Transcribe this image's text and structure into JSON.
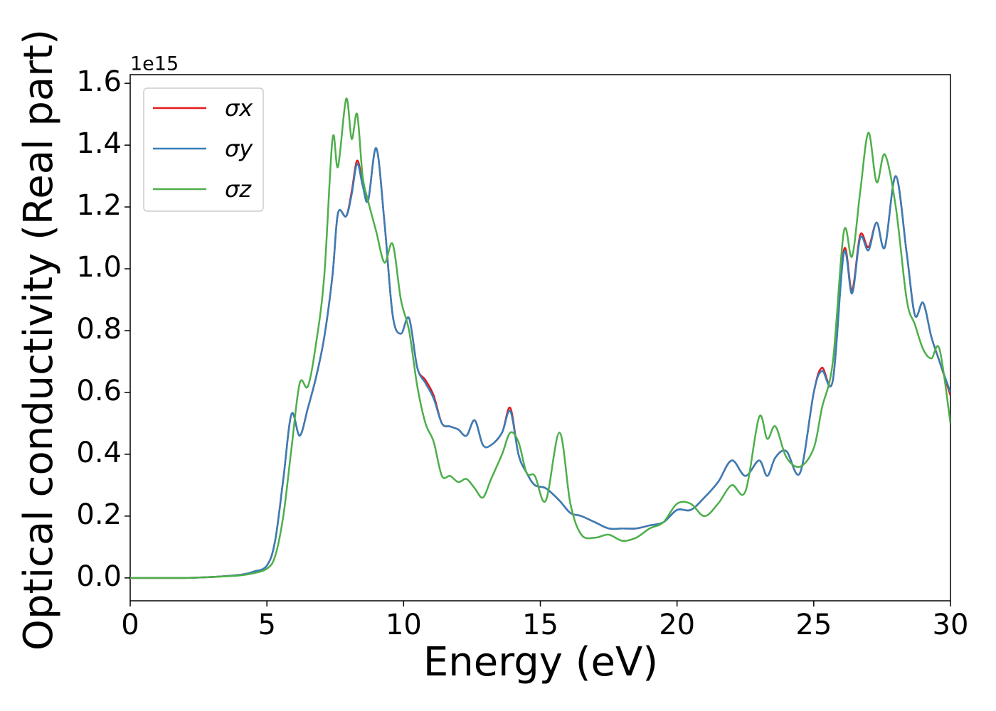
{
  "chart_data": {
    "type": "line",
    "xlabel": "Energy (eV)",
    "ylabel": "Optical conductivity (Real part)",
    "y_offset_label": "1e15",
    "x": [
      0,
      1,
      2,
      3,
      4,
      4.5,
      5,
      5.3,
      5.6,
      5.9,
      6.2,
      6.5,
      6.8,
      7.1,
      7.4,
      7.6,
      7.9,
      8.1,
      8.3,
      8.5,
      8.7,
      9.0,
      9.3,
      9.6,
      9.9,
      10.2,
      10.5,
      10.8,
      11.1,
      11.4,
      11.7,
      12.0,
      12.3,
      12.6,
      12.9,
      13.2,
      13.6,
      13.9,
      14.2,
      14.5,
      14.8,
      15.2,
      15.7,
      16.1,
      16.5,
      17.0,
      17.5,
      18.0,
      18.5,
      19.0,
      19.5,
      20.0,
      20.5,
      21.0,
      21.5,
      22.0,
      22.5,
      23.0,
      23.3,
      23.6,
      24.0,
      24.5,
      25.0,
      25.3,
      25.7,
      26.1,
      26.4,
      26.7,
      27.0,
      27.3,
      27.6,
      28.0,
      28.4,
      28.7,
      29.0,
      29.3,
      29.6,
      30.0
    ],
    "series": [
      {
        "name": "σx",
        "color": "#e41a1c",
        "values": [
          0,
          0,
          0,
          0.003,
          0.01,
          0.02,
          0.04,
          0.12,
          0.32,
          0.53,
          0.46,
          0.55,
          0.65,
          0.78,
          0.98,
          1.18,
          1.17,
          1.25,
          1.35,
          1.28,
          1.22,
          1.39,
          1.15,
          0.85,
          0.79,
          0.84,
          0.68,
          0.64,
          0.59,
          0.5,
          0.49,
          0.48,
          0.46,
          0.51,
          0.43,
          0.43,
          0.47,
          0.55,
          0.4,
          0.34,
          0.3,
          0.29,
          0.25,
          0.21,
          0.2,
          0.18,
          0.16,
          0.16,
          0.16,
          0.17,
          0.18,
          0.22,
          0.22,
          0.26,
          0.31,
          0.38,
          0.33,
          0.38,
          0.33,
          0.39,
          0.41,
          0.34,
          0.6,
          0.68,
          0.64,
          1.06,
          0.93,
          1.11,
          1.07,
          1.15,
          1.07,
          1.3,
          1.05,
          0.85,
          0.89,
          0.78,
          0.7,
          0.59
        ]
      },
      {
        "name": "σy",
        "color": "#377eb8",
        "values": [
          0,
          0,
          0,
          0.003,
          0.01,
          0.02,
          0.04,
          0.12,
          0.32,
          0.53,
          0.46,
          0.55,
          0.65,
          0.78,
          0.98,
          1.18,
          1.17,
          1.24,
          1.34,
          1.27,
          1.22,
          1.39,
          1.15,
          0.85,
          0.79,
          0.84,
          0.68,
          0.63,
          0.58,
          0.5,
          0.49,
          0.48,
          0.46,
          0.51,
          0.43,
          0.43,
          0.47,
          0.54,
          0.4,
          0.34,
          0.3,
          0.29,
          0.25,
          0.21,
          0.2,
          0.18,
          0.16,
          0.16,
          0.16,
          0.17,
          0.18,
          0.22,
          0.22,
          0.26,
          0.31,
          0.38,
          0.33,
          0.38,
          0.33,
          0.39,
          0.41,
          0.34,
          0.6,
          0.67,
          0.64,
          1.05,
          0.92,
          1.1,
          1.06,
          1.15,
          1.07,
          1.3,
          1.05,
          0.85,
          0.89,
          0.78,
          0.7,
          0.6
        ]
      },
      {
        "name": "σz",
        "color": "#4daf4a",
        "values": [
          0,
          0,
          0,
          0.003,
          0.008,
          0.015,
          0.03,
          0.07,
          0.2,
          0.42,
          0.63,
          0.62,
          0.76,
          0.98,
          1.42,
          1.33,
          1.55,
          1.42,
          1.5,
          1.3,
          1.22,
          1.12,
          1.02,
          1.08,
          0.9,
          0.8,
          0.62,
          0.5,
          0.44,
          0.33,
          0.33,
          0.31,
          0.32,
          0.29,
          0.26,
          0.32,
          0.4,
          0.47,
          0.44,
          0.34,
          0.33,
          0.25,
          0.47,
          0.24,
          0.14,
          0.13,
          0.14,
          0.12,
          0.13,
          0.16,
          0.18,
          0.24,
          0.24,
          0.2,
          0.24,
          0.3,
          0.28,
          0.52,
          0.45,
          0.49,
          0.39,
          0.36,
          0.42,
          0.55,
          0.7,
          1.12,
          1.04,
          1.25,
          1.44,
          1.28,
          1.37,
          1.2,
          0.9,
          0.82,
          0.74,
          0.71,
          0.74,
          0.5
        ]
      }
    ],
    "xlim": [
      0,
      30
    ],
    "xticks": [
      0,
      5,
      10,
      15,
      20,
      25,
      30
    ],
    "ylim": [
      -0.074,
      1.628
    ],
    "yticks": [
      {
        "value": 0,
        "label": "0.0"
      },
      {
        "value": 0.2,
        "label": "0.2"
      },
      {
        "value": 0.4,
        "label": "0.4"
      },
      {
        "value": 0.6,
        "label": "0.6"
      },
      {
        "value": 0.8,
        "label": "0.8"
      },
      {
        "value": 1.0,
        "label": "1.0"
      },
      {
        "value": 1.2,
        "label": "1.2"
      },
      {
        "value": 1.4,
        "label": "1.4"
      },
      {
        "value": 1.6,
        "label": "1.6"
      }
    ],
    "legend": "upper left",
    "grid": false
  }
}
